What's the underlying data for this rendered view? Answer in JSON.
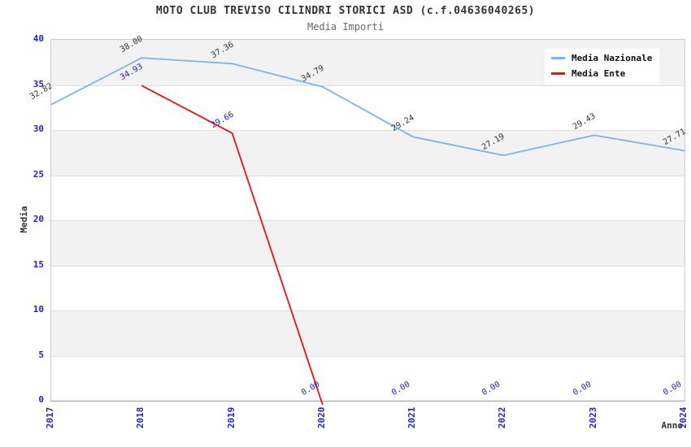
{
  "chart_data": {
    "type": "line",
    "title": "MOTO CLUB TREVISO CILINDRI STORICI ASD (c.f.04636040265)",
    "subtitle": "Media Importi",
    "xlabel": "Anno",
    "ylabel": "Media",
    "categories": [
      "2017",
      "2018",
      "2019",
      "2020",
      "2021",
      "2022",
      "2023",
      "2024"
    ],
    "ylim": [
      0,
      40
    ],
    "ytick_step": 5,
    "yticks": [
      0,
      5,
      10,
      15,
      20,
      25,
      30,
      35,
      40
    ],
    "grid": true,
    "band_fill_ranges": [
      [
        35,
        40
      ],
      [
        25,
        30
      ],
      [
        15,
        20
      ],
      [
        5,
        10
      ]
    ],
    "legend_position": "top-right",
    "series": [
      {
        "name": "Media Nazionale",
        "color": "#7cb5ec",
        "label_color": "#333333",
        "values": [
          32.82,
          38.0,
          37.36,
          34.79,
          29.24,
          27.19,
          29.43,
          27.71
        ]
      },
      {
        "name": "Media Ente",
        "color": "#ee1111",
        "label_color": "#2222cc",
        "values": [
          null,
          34.93,
          29.66,
          0.0,
          0.0,
          0.0,
          0.0,
          0.0
        ],
        "drawn_through_index": 3
      }
    ]
  },
  "colors": {
    "tick_label": "#2222cc",
    "band_gray": "#f2f2f2",
    "gridline": "#e0e0e0",
    "plot_border": "#cccccc",
    "axis_line": "#999999",
    "title": "#333333",
    "subtitle": "#666666"
  }
}
